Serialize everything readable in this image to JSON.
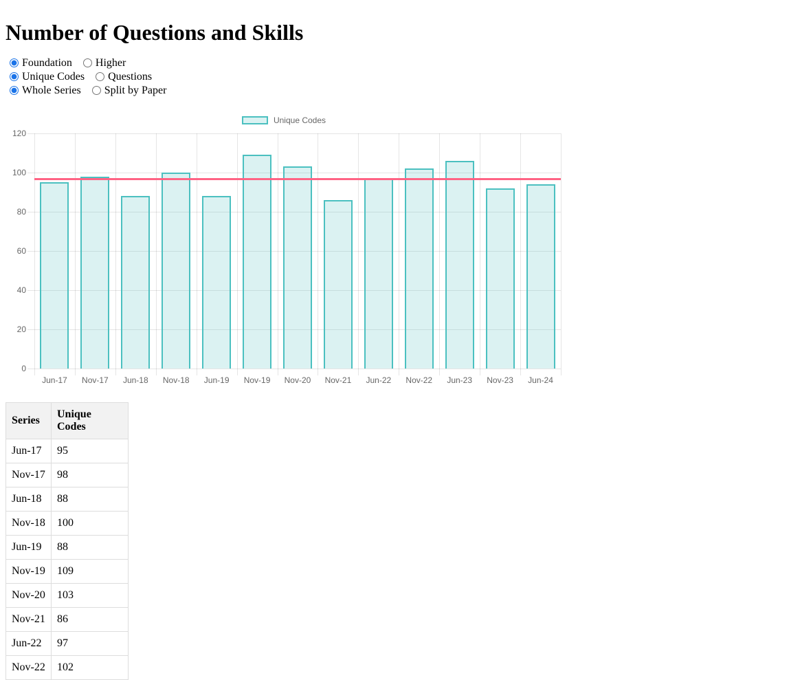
{
  "page": {
    "title": "Number of Questions and Skills"
  },
  "controls": {
    "rows": [
      {
        "name": "tier",
        "options": [
          {
            "label": "Foundation",
            "checked": true
          },
          {
            "label": "Higher",
            "checked": false
          }
        ]
      },
      {
        "name": "metric",
        "options": [
          {
            "label": "Unique Codes",
            "checked": true
          },
          {
            "label": "Questions",
            "checked": false
          }
        ]
      },
      {
        "name": "split",
        "options": [
          {
            "label": "Whole Series",
            "checked": true
          },
          {
            "label": "Split by Paper",
            "checked": false
          }
        ]
      }
    ]
  },
  "chart_data": {
    "type": "bar",
    "title": "",
    "legend": [
      "Unique Codes"
    ],
    "legend_position": "top",
    "categories": [
      "Jun-17",
      "Nov-17",
      "Jun-18",
      "Nov-18",
      "Jun-19",
      "Nov-19",
      "Nov-20",
      "Nov-21",
      "Jun-22",
      "Nov-22",
      "Jun-23",
      "Nov-23",
      "Jun-24"
    ],
    "series": [
      {
        "name": "Unique Codes",
        "values": [
          95,
          98,
          88,
          100,
          88,
          109,
          103,
          86,
          97,
          102,
          106,
          92,
          94
        ]
      }
    ],
    "average_line": 96.8,
    "ylim": [
      0,
      120
    ],
    "ytick_step": 20,
    "grid": true,
    "colors": {
      "bar_fill": "rgba(75,192,192,0.2)",
      "bar_border": "#4bc0c0",
      "average_line": "#ff6384",
      "grid": "rgba(0,0,0,0.1)",
      "axis_text": "#666666"
    }
  },
  "table": {
    "headers": [
      "Series",
      "Unique Codes"
    ],
    "rows": [
      [
        "Jun-17",
        "95"
      ],
      [
        "Nov-17",
        "98"
      ],
      [
        "Jun-18",
        "88"
      ],
      [
        "Nov-18",
        "100"
      ],
      [
        "Jun-19",
        "88"
      ],
      [
        "Nov-19",
        "109"
      ],
      [
        "Nov-20",
        "103"
      ],
      [
        "Nov-21",
        "86"
      ],
      [
        "Jun-22",
        "97"
      ],
      [
        "Nov-22",
        "102"
      ]
    ]
  }
}
